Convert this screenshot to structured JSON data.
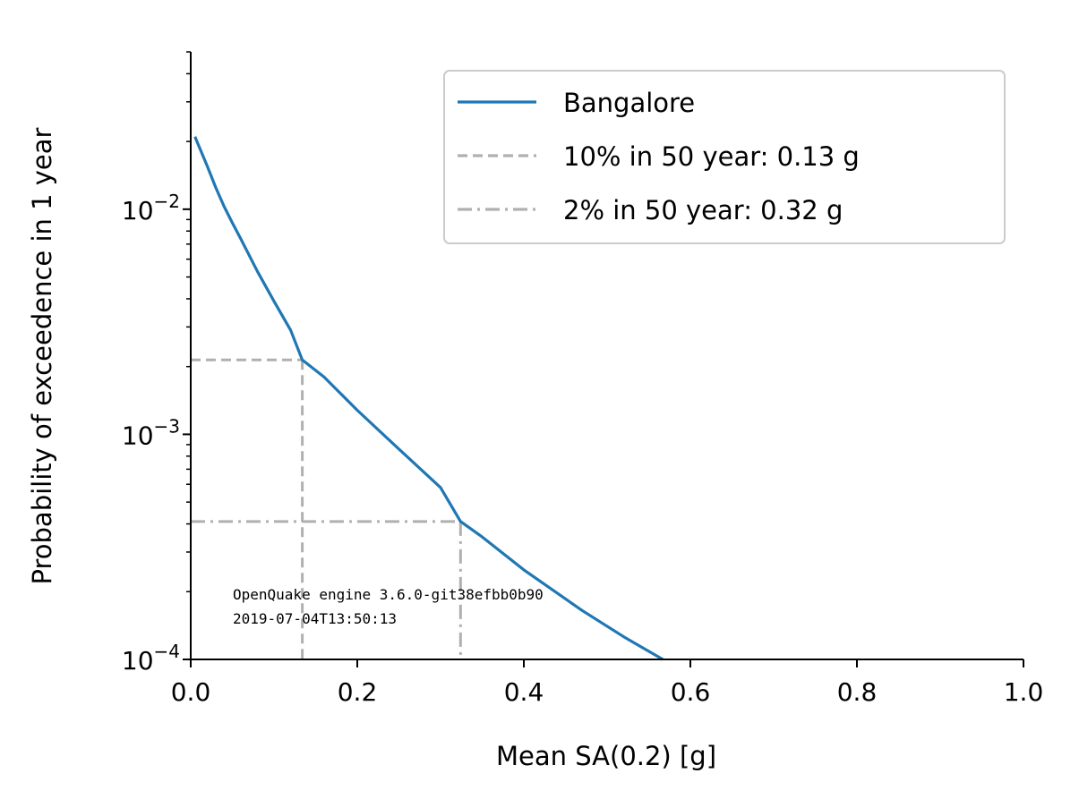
{
  "chart_data": {
    "type": "line",
    "x_label": "Mean SA(0.2) [g]",
    "y_label": "Probability of exceedence in 1 year",
    "x_scale": "linear",
    "y_scale": "log",
    "xlim": [
      0.0,
      1.0
    ],
    "ylim": [
      0.0001,
      0.05
    ],
    "x_ticks": [
      0.0,
      0.2,
      0.4,
      0.6,
      0.8,
      1.0
    ],
    "x_tick_labels": [
      "0.0",
      "0.2",
      "0.4",
      "0.6",
      "0.8",
      "1.0"
    ],
    "y_ticks": [
      0.0001,
      0.001,
      0.01
    ],
    "y_tick_labels": [
      {
        "base": "10",
        "exp": "−4"
      },
      {
        "base": "10",
        "exp": "−3"
      },
      {
        "base": "10",
        "exp": "−2"
      }
    ],
    "grid": false,
    "legend_position": "top-right",
    "series": [
      {
        "name": "Bangalore",
        "color": "#1f77b4",
        "style": "solid",
        "x": [
          0.005,
          0.01,
          0.02,
          0.03,
          0.04,
          0.05,
          0.06,
          0.08,
          0.1,
          0.12,
          0.134,
          0.16,
          0.2,
          0.25,
          0.3,
          0.324,
          0.35,
          0.4,
          0.47,
          0.52,
          0.567
        ],
        "y": [
          0.021,
          0.019,
          0.0155,
          0.0125,
          0.0103,
          0.0087,
          0.0074,
          0.0053,
          0.0039,
          0.0029,
          0.00214,
          0.0018,
          0.00128,
          0.00086,
          0.00058,
          0.00041,
          0.00035,
          0.00025,
          0.000165,
          0.000126,
          0.0001
        ]
      }
    ],
    "reference_lines": [
      {
        "label": "10% in 50 year: 0.13 g",
        "x": 0.134,
        "y": 0.00214,
        "style": "dashed",
        "color": "#b0b0b0"
      },
      {
        "label": "2% in 50 year: 0.32 g",
        "x": 0.324,
        "y": 0.00041,
        "style": "dashdot",
        "color": "#b0b0b0"
      }
    ],
    "annotation": {
      "lines": [
        "OpenQuake engine 3.6.0-git38efbb0b90",
        "2019-07-04T13:50:13"
      ]
    }
  }
}
